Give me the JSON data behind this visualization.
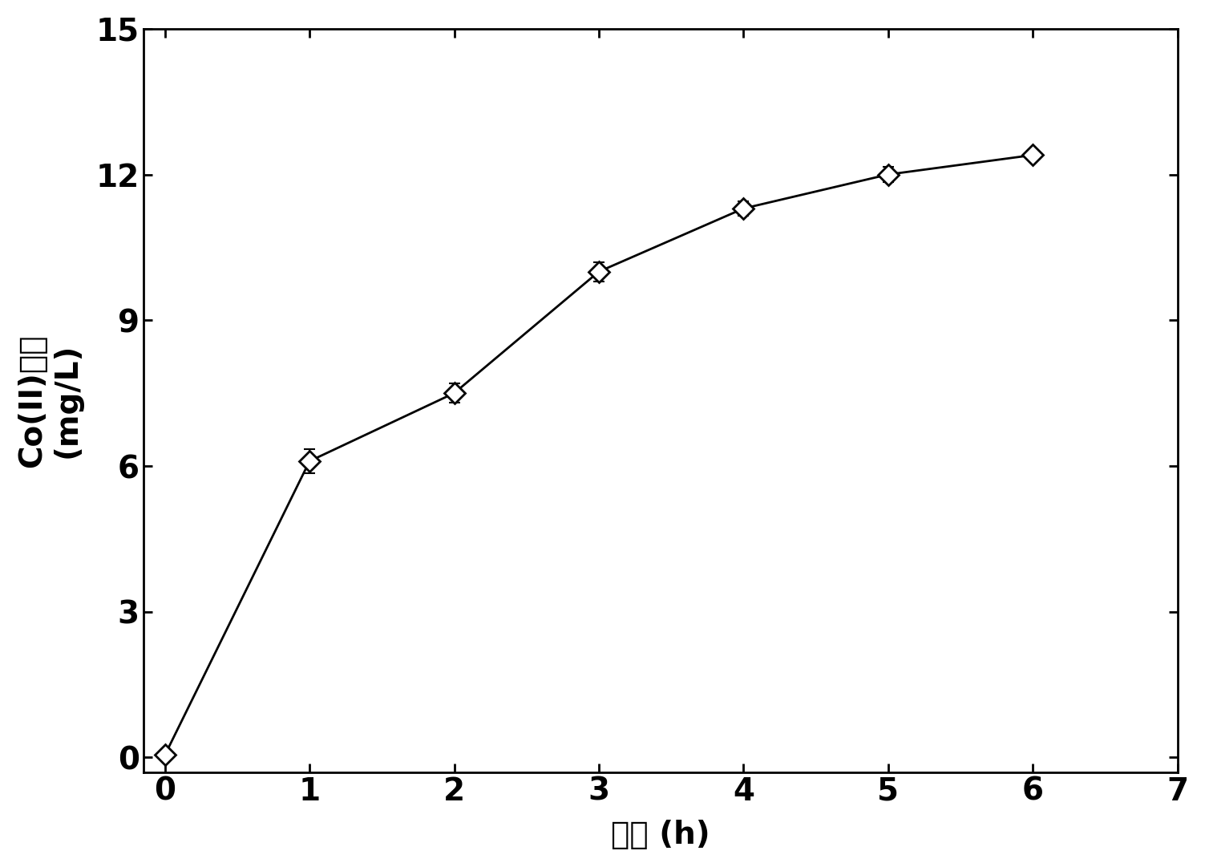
{
  "x": [
    0,
    1,
    2,
    3,
    4,
    5,
    6
  ],
  "y": [
    0.05,
    6.1,
    7.5,
    10.0,
    11.3,
    12.0,
    12.4
  ],
  "yerr": [
    0.05,
    0.25,
    0.2,
    0.2,
    0.15,
    0.15,
    0.1
  ],
  "xlim": [
    -0.15,
    7
  ],
  "ylim": [
    -0.3,
    15
  ],
  "xticks": [
    0,
    1,
    2,
    3,
    4,
    5,
    6,
    7
  ],
  "yticks": [
    0,
    3,
    6,
    9,
    12,
    15
  ],
  "xlabel": "时间 (h)",
  "ylabel_line1": "Co(II)浓度",
  "ylabel_line2": "(mg/L)",
  "line_color": "#000000",
  "marker_facecolor": "#ffffff",
  "marker_edgecolor": "#000000",
  "marker_size": 13,
  "line_width": 2.0,
  "elinewidth": 1.5,
  "capsize": 5,
  "capthick": 1.5,
  "tick_fontsize": 28,
  "label_fontsize": 28,
  "spine_linewidth": 2.0,
  "figure_bg": "#ffffff",
  "axes_bg": "#ffffff",
  "figwidth": 15.03,
  "figheight": 10.81,
  "dpi": 100
}
